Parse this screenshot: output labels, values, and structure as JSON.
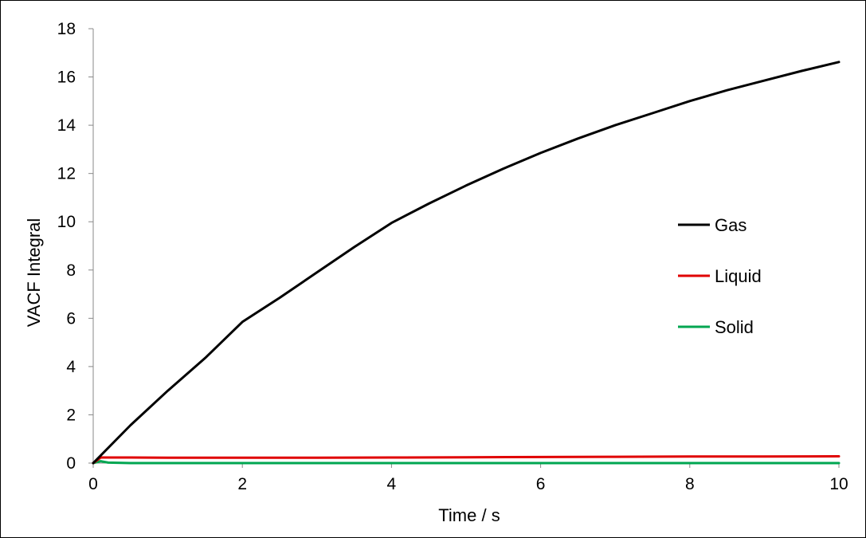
{
  "chart_data": {
    "type": "line",
    "title": "",
    "xlabel": "Time / s",
    "ylabel": "VACF Integral",
    "xlim": [
      0,
      10
    ],
    "ylim": [
      0,
      18
    ],
    "xticks": [
      0,
      2,
      4,
      6,
      8,
      10
    ],
    "yticks": [
      0,
      2,
      4,
      6,
      8,
      10,
      12,
      14,
      16,
      18
    ],
    "grid": false,
    "legend_position": "right",
    "series": [
      {
        "name": "Gas",
        "color": "#000000",
        "x": [
          0,
          0.5,
          1,
          1.5,
          2,
          2.5,
          3,
          3.5,
          4,
          4.5,
          5,
          5.5,
          6,
          6.5,
          7,
          7.5,
          8,
          8.5,
          9,
          9.5,
          10
        ],
        "y": [
          0,
          1.57,
          3.0,
          4.35,
          5.85,
          6.85,
          7.9,
          8.95,
          9.95,
          10.75,
          11.5,
          12.2,
          12.85,
          13.45,
          14.0,
          14.5,
          15.0,
          15.45,
          15.85,
          16.25,
          16.62
        ]
      },
      {
        "name": "Liquid",
        "color": "#e00000",
        "x": [
          0,
          0.1,
          0.5,
          1,
          2,
          3,
          4,
          5,
          6,
          7,
          8,
          9,
          10
        ],
        "y": [
          0,
          0.23,
          0.23,
          0.22,
          0.22,
          0.22,
          0.23,
          0.24,
          0.25,
          0.26,
          0.27,
          0.27,
          0.28
        ]
      },
      {
        "name": "Solid",
        "color": "#00a651",
        "x": [
          0,
          0.1,
          0.2,
          0.5,
          1,
          2,
          3,
          4,
          5,
          6,
          7,
          8,
          9,
          10
        ],
        "y": [
          0,
          0.08,
          0.02,
          0,
          0,
          0,
          0,
          0,
          0,
          0,
          0,
          0,
          0,
          0
        ]
      }
    ]
  }
}
